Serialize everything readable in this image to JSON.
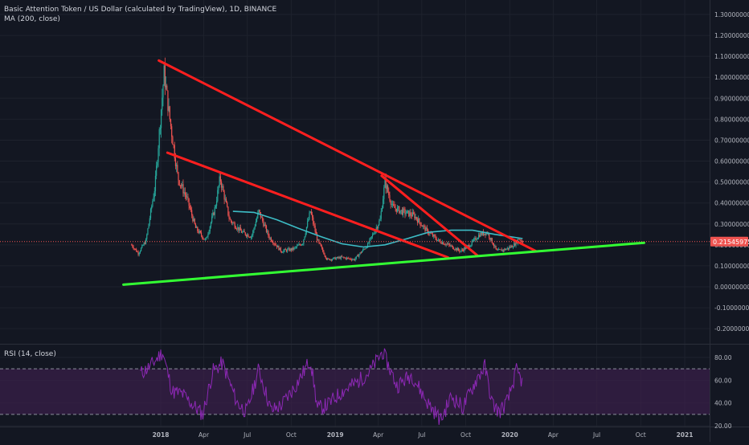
{
  "header": {
    "title": "Basic Attention Token / US Dollar (calculated by TradingView), 1D, BINANCE",
    "indicator": "MA (200, close)"
  },
  "rsi_panel": {
    "label": "RSI (14, close)"
  },
  "colors": {
    "background": "#131722",
    "grid": "#1e222d",
    "axis_text": "#b2b5be",
    "candle_up": "#26a69a",
    "candle_down": "#ef5350",
    "ma": "#3dbdc6",
    "resistance_lines": "#ff1f1f",
    "support_line": "#33ff33",
    "rsi_line": "#8c28b4",
    "rsi_band": "#3a1f4a",
    "price_tag": "#ef5350"
  },
  "chart_data": [
    {
      "type": "candlestick",
      "title": "Basic Attention Token / US Dollar (calculated by TradingView), 1D, BINANCE",
      "x_tick_labels": [
        "2018",
        "Apr",
        "Jul",
        "Oct",
        "2019",
        "Apr",
        "Jul",
        "Oct",
        "2020",
        "Apr",
        "Jul",
        "Oct",
        "2021"
      ],
      "y_tick_labels": [
        "1.30000000",
        "1.20000000",
        "1.10000000",
        "1.00000000",
        "0.90000000",
        "0.80000000",
        "0.70000000",
        "0.60000000",
        "0.50000000",
        "0.40000000",
        "0.30000000",
        "0.20000000",
        "0.10000000",
        "0.00000000",
        "-0.10000000",
        "-0.20000000"
      ],
      "ylim": [
        -0.27,
        1.38
      ],
      "grid": true,
      "last_price_label": "0.21545975",
      "last_price": 0.2155,
      "price_series_approx": [
        {
          "date": "2017-11-01",
          "close": 0.2
        },
        {
          "date": "2017-11-15",
          "close": 0.16
        },
        {
          "date": "2017-12-01",
          "close": 0.22
        },
        {
          "date": "2017-12-20",
          "close": 0.48
        },
        {
          "date": "2018-01-08",
          "close": 1.02
        },
        {
          "date": "2018-01-20",
          "close": 0.8
        },
        {
          "date": "2018-02-06",
          "close": 0.52
        },
        {
          "date": "2018-02-25",
          "close": 0.42
        },
        {
          "date": "2018-03-15",
          "close": 0.28
        },
        {
          "date": "2018-04-05",
          "close": 0.22
        },
        {
          "date": "2018-04-25",
          "close": 0.38
        },
        {
          "date": "2018-05-05",
          "close": 0.52
        },
        {
          "date": "2018-05-25",
          "close": 0.32
        },
        {
          "date": "2018-06-20",
          "close": 0.26
        },
        {
          "date": "2018-07-10",
          "close": 0.24
        },
        {
          "date": "2018-07-25",
          "close": 0.36
        },
        {
          "date": "2018-08-15",
          "close": 0.24
        },
        {
          "date": "2018-09-10",
          "close": 0.17
        },
        {
          "date": "2018-10-05",
          "close": 0.18
        },
        {
          "date": "2018-10-25",
          "close": 0.21
        },
        {
          "date": "2018-11-10",
          "close": 0.36
        },
        {
          "date": "2018-11-25",
          "close": 0.22
        },
        {
          "date": "2018-12-15",
          "close": 0.13
        },
        {
          "date": "2019-01-15",
          "close": 0.14
        },
        {
          "date": "2019-02-10",
          "close": 0.13
        },
        {
          "date": "2019-03-10",
          "close": 0.2
        },
        {
          "date": "2019-04-05",
          "close": 0.32
        },
        {
          "date": "2019-04-15",
          "close": 0.5
        },
        {
          "date": "2019-05-01",
          "close": 0.38
        },
        {
          "date": "2019-05-20",
          "close": 0.36
        },
        {
          "date": "2019-06-15",
          "close": 0.34
        },
        {
          "date": "2019-07-10",
          "close": 0.27
        },
        {
          "date": "2019-08-05",
          "close": 0.22
        },
        {
          "date": "2019-08-25",
          "close": 0.2
        },
        {
          "date": "2019-09-20",
          "close": 0.17
        },
        {
          "date": "2019-10-10",
          "close": 0.2
        },
        {
          "date": "2019-10-30",
          "close": 0.25
        },
        {
          "date": "2019-11-15",
          "close": 0.26
        },
        {
          "date": "2019-12-05",
          "close": 0.17
        },
        {
          "date": "2019-12-25",
          "close": 0.18
        },
        {
          "date": "2020-01-10",
          "close": 0.2
        },
        {
          "date": "2020-01-20",
          "close": 0.23
        },
        {
          "date": "2020-01-28",
          "close": 0.2155
        }
      ],
      "series": [
        {
          "name": "MA (200, close)",
          "type": "line",
          "points": [
            {
              "date": "2018-06-01",
              "value": 0.36
            },
            {
              "date": "2018-07-15",
              "value": 0.355
            },
            {
              "date": "2018-09-01",
              "value": 0.32
            },
            {
              "date": "2018-10-15",
              "value": 0.28
            },
            {
              "date": "2018-12-01",
              "value": 0.24
            },
            {
              "date": "2019-01-15",
              "value": 0.205
            },
            {
              "date": "2019-03-01",
              "value": 0.19
            },
            {
              "date": "2019-04-15",
              "value": 0.2
            },
            {
              "date": "2019-06-01",
              "value": 0.23
            },
            {
              "date": "2019-07-15",
              "value": 0.26
            },
            {
              "date": "2019-09-01",
              "value": 0.27
            },
            {
              "date": "2019-10-15",
              "value": 0.27
            },
            {
              "date": "2019-12-01",
              "value": 0.25
            },
            {
              "date": "2020-01-28",
              "value": 0.23
            }
          ]
        }
      ],
      "drawings": [
        {
          "kind": "resistance",
          "color": "red",
          "from": {
            "date": "2017-12-28",
            "value": 1.08
          },
          "to": {
            "date": "2020-02-25",
            "value": 0.17
          }
        },
        {
          "kind": "resistance",
          "color": "red",
          "from": {
            "date": "2018-01-15",
            "value": 0.64
          },
          "to": {
            "date": "2019-08-25",
            "value": 0.14
          }
        },
        {
          "kind": "resistance",
          "color": "red",
          "from": {
            "date": "2019-04-08",
            "value": 0.53
          },
          "to": {
            "date": "2019-10-25",
            "value": 0.15
          }
        },
        {
          "kind": "support",
          "color": "green",
          "from": {
            "date": "2017-10-15",
            "value": 0.01
          },
          "to": {
            "date": "2020-10-08",
            "value": 0.21
          }
        }
      ]
    },
    {
      "type": "line",
      "title": "RSI (14, close)",
      "y_tick_labels": [
        "80.00",
        "60.00",
        "40.00",
        "20.00"
      ],
      "ylim": [
        18,
        87
      ],
      "bands": [
        30,
        70
      ],
      "points": [
        {
          "date": "2017-11-20",
          "value": 66
        },
        {
          "date": "2017-12-10",
          "value": 72
        },
        {
          "date": "2018-01-05",
          "value": 85
        },
        {
          "date": "2018-01-25",
          "value": 50
        },
        {
          "date": "2018-02-15",
          "value": 48
        },
        {
          "date": "2018-03-10",
          "value": 38
        },
        {
          "date": "2018-03-30",
          "value": 30
        },
        {
          "date": "2018-04-20",
          "value": 68
        },
        {
          "date": "2018-05-10",
          "value": 75
        },
        {
          "date": "2018-06-10",
          "value": 40
        },
        {
          "date": "2018-06-30",
          "value": 32
        },
        {
          "date": "2018-07-25",
          "value": 70
        },
        {
          "date": "2018-08-20",
          "value": 33
        },
        {
          "date": "2018-09-10",
          "value": 38
        },
        {
          "date": "2018-10-10",
          "value": 55
        },
        {
          "date": "2018-11-10",
          "value": 78
        },
        {
          "date": "2018-11-25",
          "value": 35
        },
        {
          "date": "2018-12-15",
          "value": 38
        },
        {
          "date": "2019-01-15",
          "value": 50
        },
        {
          "date": "2019-02-15",
          "value": 58
        },
        {
          "date": "2019-03-15",
          "value": 68
        },
        {
          "date": "2019-04-10",
          "value": 85
        },
        {
          "date": "2019-05-10",
          "value": 55
        },
        {
          "date": "2019-06-10",
          "value": 65
        },
        {
          "date": "2019-07-10",
          "value": 42
        },
        {
          "date": "2019-08-10",
          "value": 25
        },
        {
          "date": "2019-09-01",
          "value": 46
        },
        {
          "date": "2019-09-25",
          "value": 36
        },
        {
          "date": "2019-10-25",
          "value": 62
        },
        {
          "date": "2019-11-10",
          "value": 72
        },
        {
          "date": "2019-11-25",
          "value": 40
        },
        {
          "date": "2019-12-10",
          "value": 32
        },
        {
          "date": "2019-12-28",
          "value": 42
        },
        {
          "date": "2020-01-15",
          "value": 68
        },
        {
          "date": "2020-01-28",
          "value": 58
        }
      ]
    }
  ]
}
